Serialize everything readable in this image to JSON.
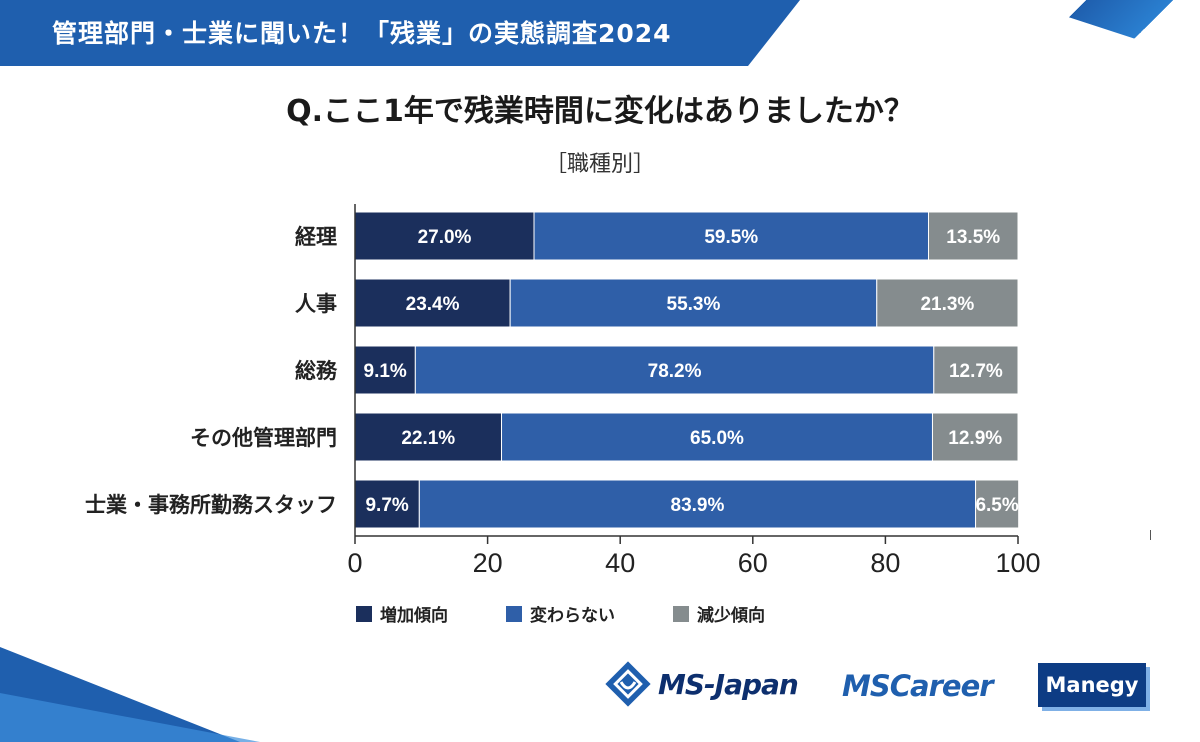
{
  "header": {
    "banner": "管理部門・士業に聞いた！「残業」の実態調査2024"
  },
  "question": "Q.ここ1年で残業時間に変化はありましたか？",
  "subtitle": "［職種別］",
  "colors": {
    "increase": "#1b2f5c",
    "nochange": "#2f5fa8",
    "decrease": "#858c8e",
    "banner": "#1f5fae"
  },
  "chart_data": {
    "type": "bar",
    "orientation": "horizontal-stacked",
    "title": "Q.ここ1年で残業時間に変化はありましたか？",
    "subtitle": "［職種別］",
    "categories": [
      "経理",
      "人事",
      "総務",
      "その他管理部門",
      "士業・事務所勤務スタッフ"
    ],
    "series": [
      {
        "name": "増加傾向",
        "values": [
          27.0,
          23.4,
          9.1,
          22.1,
          9.7
        ]
      },
      {
        "name": "変わらない",
        "values": [
          59.5,
          55.3,
          78.2,
          65.0,
          83.9
        ]
      },
      {
        "name": "減少傾向",
        "values": [
          13.5,
          21.3,
          12.7,
          12.9,
          6.5
        ]
      }
    ],
    "labels": [
      [
        "27.0%",
        "59.5%",
        "13.5%"
      ],
      [
        "23.4%",
        "55.3%",
        "21.3%"
      ],
      [
        "9.1%",
        "78.2%",
        "12.7%"
      ],
      [
        "22.1%",
        "65.0%",
        "12.9%"
      ],
      [
        "9.7%",
        "83.9%",
        "6.5%"
      ]
    ],
    "xlim": [
      0,
      100
    ],
    "xticks": [
      "0",
      "20",
      "40",
      "60",
      "80",
      "100"
    ],
    "legend": "bottom"
  },
  "logos": {
    "msjapan": "MS-Japan",
    "mscareer": "MSCareer",
    "manegy": "Manegy"
  }
}
